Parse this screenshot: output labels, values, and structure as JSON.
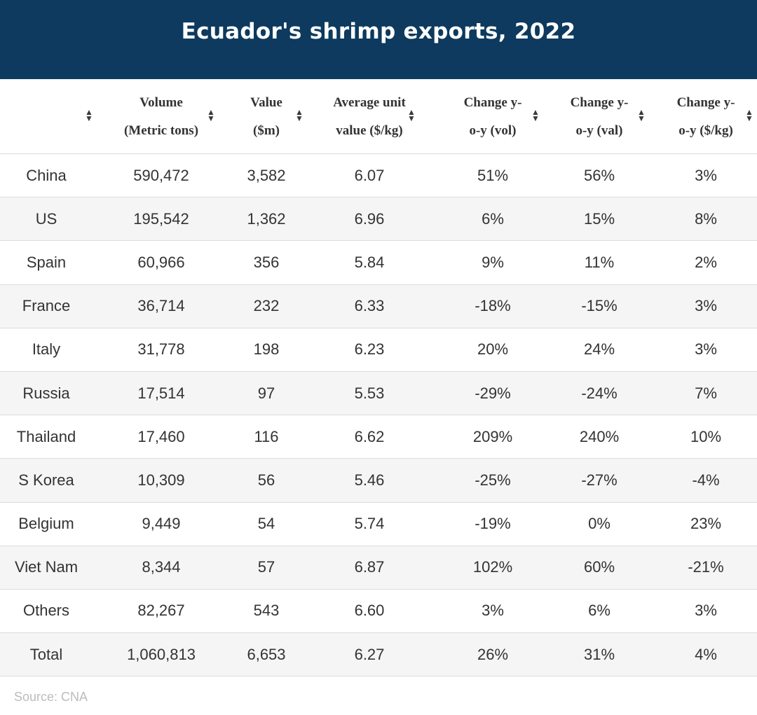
{
  "chart_data": {
    "type": "table",
    "title": "Ecuador's shrimp exports, 2022",
    "columns": [
      {
        "key": "country",
        "label": ""
      },
      {
        "key": "volume",
        "label": "Volume (Metric tons)"
      },
      {
        "key": "value",
        "label": "Value ($m)"
      },
      {
        "key": "avg_unit",
        "label": "Average unit value ($/kg)"
      },
      {
        "key": "chg_vol",
        "label": "Change y-o-y (vol)"
      },
      {
        "key": "chg_val",
        "label": "Change y-o-y (val)"
      },
      {
        "key": "chg_kg",
        "label": "Change y-o-y ($/kg)"
      }
    ],
    "header_lines": [
      [
        ""
      ],
      [
        "Volume",
        "(Metric tons)"
      ],
      [
        "Value",
        "($m)"
      ],
      [
        "Average unit",
        "value ($/kg)"
      ],
      [
        "Change y-",
        "o-y (vol)"
      ],
      [
        "Change y-",
        "o-y (val)"
      ],
      [
        "Change y-",
        "o-y ($/kg)"
      ]
    ],
    "rows": [
      [
        "China",
        "590,472",
        "3,582",
        "6.07",
        "51%",
        "56%",
        "3%"
      ],
      [
        "US",
        "195,542",
        "1,362",
        "6.96",
        "6%",
        "15%",
        "8%"
      ],
      [
        "Spain",
        "60,966",
        "356",
        "5.84",
        "9%",
        "11%",
        "2%"
      ],
      [
        "France",
        "36,714",
        "232",
        "6.33",
        "-18%",
        "-15%",
        "3%"
      ],
      [
        "Italy",
        "31,778",
        "198",
        "6.23",
        "20%",
        "24%",
        "3%"
      ],
      [
        "Russia",
        "17,514",
        "97",
        "5.53",
        "-29%",
        "-24%",
        "7%"
      ],
      [
        "Thailand",
        "17,460",
        "116",
        "6.62",
        "209%",
        "240%",
        "10%"
      ],
      [
        "S Korea",
        "10,309",
        "56",
        "5.46",
        "-25%",
        "-27%",
        "-4%"
      ],
      [
        "Belgium",
        "9,449",
        "54",
        "5.74",
        "-19%",
        "0%",
        "23%"
      ],
      [
        "Viet Nam",
        "8,344",
        "57",
        "6.87",
        "102%",
        "60%",
        "-21%"
      ],
      [
        "Others",
        "82,267",
        "543",
        "6.60",
        "3%",
        "6%",
        "3%"
      ],
      [
        "Total",
        "1,060,813",
        "6,653",
        "6.27",
        "26%",
        "31%",
        "4%"
      ]
    ],
    "source": "Source: CNA"
  },
  "colors": {
    "header_bg": "#0d3a5e",
    "title_text": "#ffffff",
    "alt_row_bg": "#f5f5f5",
    "border": "#dcdcdc",
    "source_text": "#bcbcbc"
  },
  "icons": {
    "sort": "sort-updown-icon"
  }
}
